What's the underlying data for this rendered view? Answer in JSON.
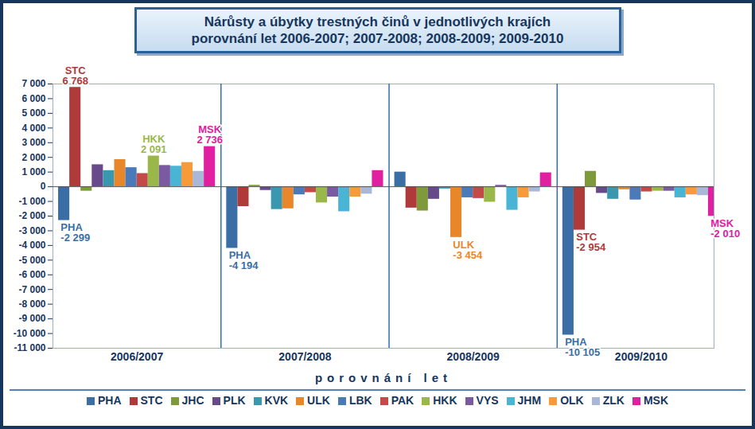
{
  "chart_data": {
    "type": "bar",
    "title": "Nárůsty a úbytky trestných činů v jednotlivých krajích\nporovnání let 2006-2007; 2007-2008; 2008-2009; 2009-2010",
    "xlabel": "porovnání let",
    "categories": [
      "2006/2007",
      "2007/2008",
      "2008/2009",
      "2009/2010"
    ],
    "series": [
      {
        "name": "PHA",
        "color": "#3a6ea5",
        "values": [
          -2299,
          -4194,
          1000,
          -10105
        ]
      },
      {
        "name": "STC",
        "color": "#b03a3a",
        "values": [
          6768,
          -1350,
          -1450,
          -2954
        ]
      },
      {
        "name": "JHC",
        "color": "#7f9a3a",
        "values": [
          -300,
          100,
          -1650,
          1050
        ]
      },
      {
        "name": "PLK",
        "color": "#664a8a",
        "values": [
          1500,
          -250,
          -850,
          -450
        ]
      },
      {
        "name": "KVK",
        "color": "#3a97b0",
        "values": [
          1100,
          -1550,
          -150,
          -850
        ]
      },
      {
        "name": "ULK",
        "color": "#e8872a",
        "values": [
          1850,
          -1500,
          -3454,
          -200
        ]
      },
      {
        "name": "LBK",
        "color": "#4a7ab8",
        "values": [
          1300,
          -550,
          -750,
          -900
        ]
      },
      {
        "name": "PAK",
        "color": "#c44a4a",
        "values": [
          900,
          -400,
          -800,
          -350
        ]
      },
      {
        "name": "HKK",
        "color": "#9ab84a",
        "values": [
          2091,
          -1100,
          -1050,
          -300
        ]
      },
      {
        "name": "VYS",
        "color": "#7a5aa0",
        "values": [
          1450,
          -700,
          100,
          -300
        ]
      },
      {
        "name": "JHM",
        "color": "#4ab4d4",
        "values": [
          1400,
          -1700,
          -1600,
          -750
        ]
      },
      {
        "name": "OLK",
        "color": "#f79a3a",
        "values": [
          1650,
          -700,
          -750,
          -550
        ]
      },
      {
        "name": "ZLK",
        "color": "#aab8d8",
        "values": [
          1050,
          -500,
          -350,
          -600
        ]
      },
      {
        "name": "MSK",
        "color": "#e020a0",
        "values": [
          2736,
          1100,
          950,
          -2010
        ]
      }
    ],
    "annotations": [
      {
        "series": "PHA",
        "category": "2006/2007",
        "text": "-2 299"
      },
      {
        "series": "STC",
        "category": "2006/2007",
        "text": "6 768"
      },
      {
        "series": "HKK",
        "category": "2006/2007",
        "text": "2 091"
      },
      {
        "series": "MSK",
        "category": "2006/2007",
        "text": "2 736"
      },
      {
        "series": "PHA",
        "category": "2007/2008",
        "text": "-4 194"
      },
      {
        "series": "ULK",
        "category": "2008/2009",
        "text": "-3 454"
      },
      {
        "series": "PHA",
        "category": "2009/2010",
        "text": "-10 105"
      },
      {
        "series": "STC",
        "category": "2009/2010",
        "text": "-2 954"
      },
      {
        "series": "MSK",
        "category": "2009/2010",
        "text": "-2 010"
      }
    ],
    "ylim": [
      -11000,
      7000
    ],
    "yticks": [
      {
        "value": -11000,
        "label": "-11 000"
      },
      {
        "value": -10000,
        "label": "-10 000"
      },
      {
        "value": -9000,
        "label": "-9 000"
      },
      {
        "value": -8000,
        "label": "-8 000"
      },
      {
        "value": -7000,
        "label": "-7 000"
      },
      {
        "value": -6000,
        "label": "-6 000"
      },
      {
        "value": -5000,
        "label": "-5 000"
      },
      {
        "value": -4000,
        "label": "-4 000"
      },
      {
        "value": -3000,
        "label": "-3 000"
      },
      {
        "value": -2000,
        "label": "-2 000"
      },
      {
        "value": -1000,
        "label": "-1 000"
      },
      0,
      {
        "value": 1000,
        "label": "1 000"
      },
      {
        "value": 2000,
        "label": "2 000"
      },
      {
        "value": 3000,
        "label": "3 000"
      },
      {
        "value": 4000,
        "label": "4 000"
      },
      {
        "value": 5000,
        "label": "5 000"
      },
      {
        "value": 6000,
        "label": "6 000"
      },
      {
        "value": 7000,
        "label": "7 000"
      }
    ],
    "grid": false,
    "legend": "bottom"
  }
}
